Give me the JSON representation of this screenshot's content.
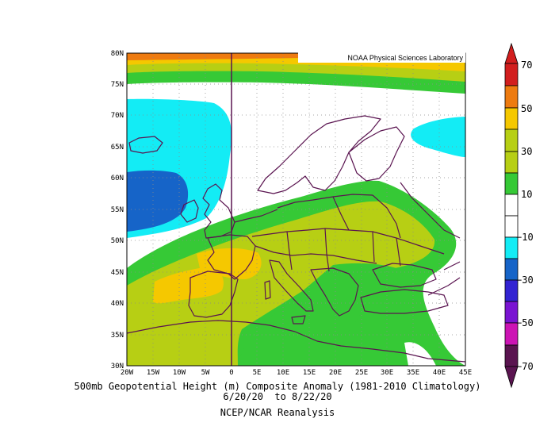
{
  "credit": "NOAA Physical Sciences Laboratory",
  "caption": {
    "line1": "500mb Geopotential Height (m) Composite Anomaly (1981-2010 Climatology)",
    "line2": "6/20/20  to 8/22/20",
    "line3": "NCEP/NCAR Reanalysis"
  },
  "map": {
    "lat_ticks": [
      "80N",
      "75N",
      "70N",
      "65N",
      "60N",
      "55N",
      "50N",
      "45N",
      "40N",
      "35N",
      "30N"
    ],
    "lon_ticks": [
      "20W",
      "15W",
      "10W",
      "5W",
      "0",
      "5E",
      "10E",
      "15E",
      "20E",
      "25E",
      "30E",
      "35E",
      "40E",
      "45E"
    ],
    "lat_range": [
      30,
      80
    ],
    "lon_range": [
      -20,
      45
    ],
    "grid": true
  },
  "colorbar": {
    "labels": [
      "70",
      "50",
      "30",
      "10",
      "−10",
      "−30",
      "−50",
      "−70"
    ],
    "colors": [
      "#d21e1e",
      "#ee7b10",
      "#f5c800",
      "#b7cf14",
      "#36c936",
      "#ffffff",
      "#13ecf5",
      "#1664c8",
      "#3223d2",
      "#7a14d2",
      "#cc14b4",
      "#5a1450"
    ]
  }
}
